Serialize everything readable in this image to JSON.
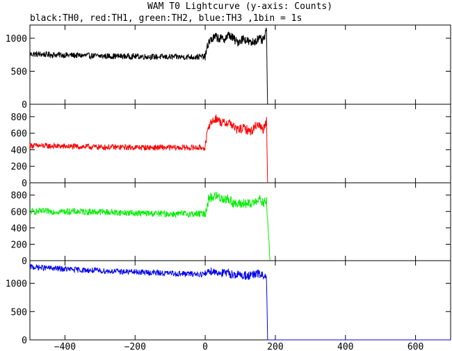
{
  "chart_data": {
    "type": "line",
    "title": "WAM T0 Lightcurve (y-axis: Counts)",
    "subtitle": "black:TH0, red:TH1, green:TH2, blue:TH3 ,1bin = 1s",
    "xlabel": "",
    "ylabel": "",
    "xlim": [
      -500,
      700
    ],
    "xticks": [
      -400,
      -200,
      0,
      200,
      400,
      600
    ],
    "xtick_labels": [
      "−400",
      "−200",
      "0",
      "200",
      "400",
      "600"
    ],
    "grid": false,
    "legend": "none",
    "panels": [
      {
        "name": "TH0",
        "color": "#000000",
        "ylim": [
          0,
          1200
        ],
        "yticks": [
          0,
          500,
          1000
        ],
        "ytick_labels": [
          "0",
          "500",
          "1000"
        ],
        "segments": [
          {
            "x": [
              -500,
              -400,
              -300,
              -200,
              -100,
              0
            ],
            "y": [
              760,
              745,
              730,
              725,
              715,
              720
            ]
          },
          {
            "x": [
              0,
              10,
              30,
              50,
              70,
              90,
              110,
              130,
              150,
              165,
              175,
              178
            ],
            "y": [
              720,
              950,
              1020,
              980,
              1050,
              940,
              1000,
              920,
              990,
              960,
              1100,
              0
            ]
          },
          {
            "x": [
              178,
              700
            ],
            "y": [
              0,
              0
            ]
          }
        ],
        "noise": 45
      },
      {
        "name": "TH1",
        "color": "#ff0000",
        "ylim": [
          0,
          950
        ],
        "yticks": [
          0,
          200,
          400,
          600,
          800
        ],
        "ytick_labels": [
          "0",
          "200",
          "400",
          "600",
          "800"
        ],
        "segments": [
          {
            "x": [
              -500,
              -400,
              -300,
              -200,
              -100,
              0
            ],
            "y": [
              450,
              440,
              432,
              428,
              425,
              425
            ]
          },
          {
            "x": [
              0,
              10,
              30,
              50,
              70,
              90,
              110,
              130,
              150,
              165,
              175,
              178
            ],
            "y": [
              425,
              700,
              780,
              720,
              730,
              640,
              660,
              620,
              720,
              640,
              760,
              0
            ]
          },
          {
            "x": [
              178,
              700
            ],
            "y": [
              0,
              0
            ]
          }
        ],
        "noise": 35
      },
      {
        "name": "TH2",
        "color": "#00ee00",
        "ylim": [
          0,
          950
        ],
        "yticks": [
          0,
          200,
          400,
          600,
          800
        ],
        "ytick_labels": [
          "0",
          "200",
          "400",
          "600",
          "800"
        ],
        "segments": [
          {
            "x": [
              -500,
              -400,
              -300,
              -200,
              -100,
              0
            ],
            "y": [
              600,
              600,
              595,
              580,
              570,
              570
            ]
          },
          {
            "x": [
              0,
              10,
              30,
              50,
              70,
              90,
              110,
              130,
              150,
              165,
              175,
              185
            ],
            "y": [
              570,
              760,
              790,
              760,
              740,
              680,
              700,
              680,
              760,
              700,
              720,
              0
            ]
          },
          {
            "x": [
              185,
              700
            ],
            "y": [
              0,
              0
            ]
          }
        ],
        "noise": 40
      },
      {
        "name": "TH3",
        "color": "#0000ee",
        "ylim": [
          0,
          1400
        ],
        "yticks": [
          0,
          500,
          1000
        ],
        "ytick_labels": [
          "0",
          "500",
          "1000"
        ],
        "segments": [
          {
            "x": [
              -500,
              -400,
              -300,
              -200,
              -100,
              0
            ],
            "y": [
              1290,
              1250,
              1220,
              1200,
              1175,
              1160
            ]
          },
          {
            "x": [
              0,
              10,
              30,
              50,
              70,
              90,
              110,
              130,
              150,
              165,
              175,
              178
            ],
            "y": [
              1160,
              1230,
              1200,
              1180,
              1170,
              1150,
              1140,
              1130,
              1170,
              1130,
              1110,
              0
            ]
          },
          {
            "x": [
              178,
              700
            ],
            "y": [
              0,
              0
            ]
          }
        ],
        "noise": 50
      }
    ]
  }
}
